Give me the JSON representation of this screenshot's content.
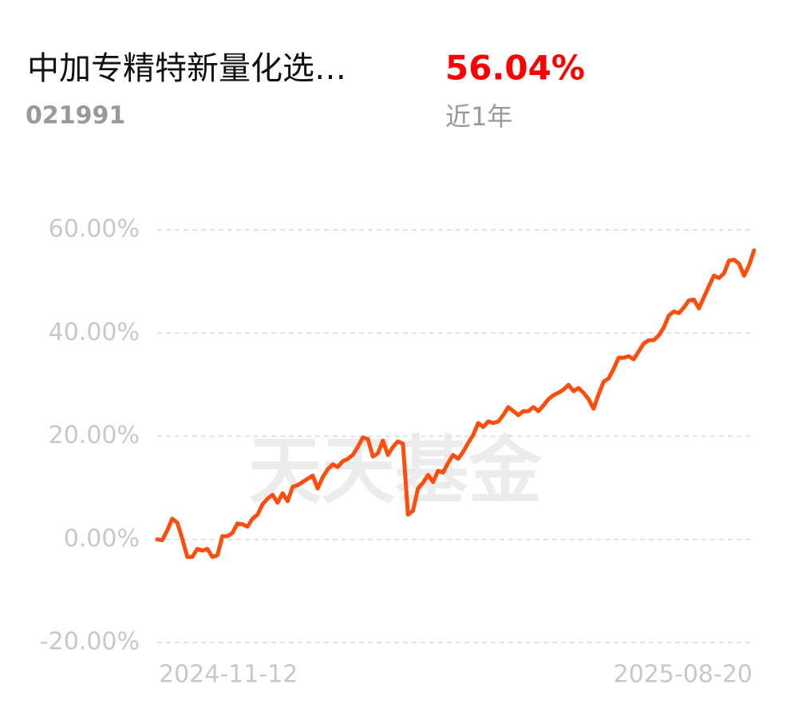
{
  "header": {
    "title": "中加专精特新量化选…",
    "code": "021991",
    "return": "56.04%",
    "period": "近1年"
  },
  "chart_data": {
    "type": "line",
    "watermark": "天天基金",
    "categories": [
      "2024-11-12",
      null,
      null,
      null,
      null,
      null,
      null,
      null,
      null,
      null,
      null,
      null,
      null,
      null,
      null,
      null,
      null,
      null,
      null,
      null,
      null,
      null,
      null,
      null,
      null,
      null,
      null,
      null,
      null,
      null,
      null,
      null,
      null,
      null,
      null,
      null,
      null,
      null,
      null,
      null,
      null,
      null,
      null,
      null,
      null,
      null,
      null,
      null,
      null,
      null,
      null,
      null,
      null,
      null,
      null,
      null,
      null,
      null,
      null,
      null,
      null,
      null,
      null,
      null,
      null,
      null,
      null,
      null,
      null,
      null,
      null,
      null,
      null,
      null,
      null,
      null,
      null,
      null,
      null,
      null,
      null,
      null,
      null,
      null,
      null,
      null,
      null,
      null,
      null,
      null,
      null,
      null,
      null,
      null,
      null,
      null,
      null,
      null,
      null,
      null,
      null,
      null,
      null,
      null,
      null,
      null,
      null,
      null,
      null,
      null,
      null,
      null,
      null,
      null,
      null,
      null,
      null,
      null,
      null,
      "2025-08-20"
    ],
    "series": [
      {
        "color": "#ff4d0d",
        "values": [
          0,
          -0.15,
          1.7,
          4.02,
          3.24,
          0.15,
          -3.4,
          -3.4,
          -1.85,
          -2.16,
          -1.85,
          -3.4,
          -3.09,
          0.62,
          0.62,
          1.24,
          3.09,
          2.93,
          2.47,
          4.02,
          4.79,
          6.8,
          7.88,
          8.65,
          7.1,
          8.96,
          7.41,
          10.19,
          10.5,
          11.12,
          11.74,
          12.36,
          9.88,
          12.05,
          13.59,
          14.52,
          14.05,
          15.14,
          15.6,
          16.37,
          17.92,
          19.77,
          19.46,
          16.06,
          16.68,
          19.15,
          16.37,
          17.92,
          19.0,
          18.53,
          4.79,
          5.56,
          9.88,
          10.97,
          12.51,
          11.12,
          13.28,
          12.97,
          14.83,
          16.37,
          15.6,
          16.99,
          18.69,
          20.23,
          22.55,
          21.78,
          22.86,
          22.55,
          22.86,
          24.09,
          25.64,
          24.86,
          24.09,
          24.86,
          24.86,
          25.64,
          24.86,
          25.95,
          27.18,
          27.95,
          28.42,
          29.03,
          29.96,
          28.73,
          29.34,
          28.42,
          27.18,
          25.33,
          28.11,
          30.58,
          31.2,
          33.05,
          35.21,
          35.21,
          35.52,
          34.9,
          36.45,
          37.99,
          38.61,
          38.61,
          39.54,
          41.08,
          43.4,
          44.17,
          43.86,
          44.94,
          46.33,
          46.49,
          44.79,
          46.95,
          49.11,
          51.12,
          50.66,
          51.58,
          54.05,
          54.21,
          53.44,
          51.12,
          53.13,
          56.04
        ]
      }
    ],
    "ylim": [
      -20,
      60
    ],
    "yticks": [
      {
        "value": -20,
        "label": "-20.00%"
      },
      {
        "value": 0,
        "label": "0.00%"
      },
      {
        "value": 20,
        "label": "20.00%"
      },
      {
        "value": 40,
        "label": "40.00%"
      },
      {
        "value": 60,
        "label": "60.00%"
      }
    ],
    "grid": true
  }
}
